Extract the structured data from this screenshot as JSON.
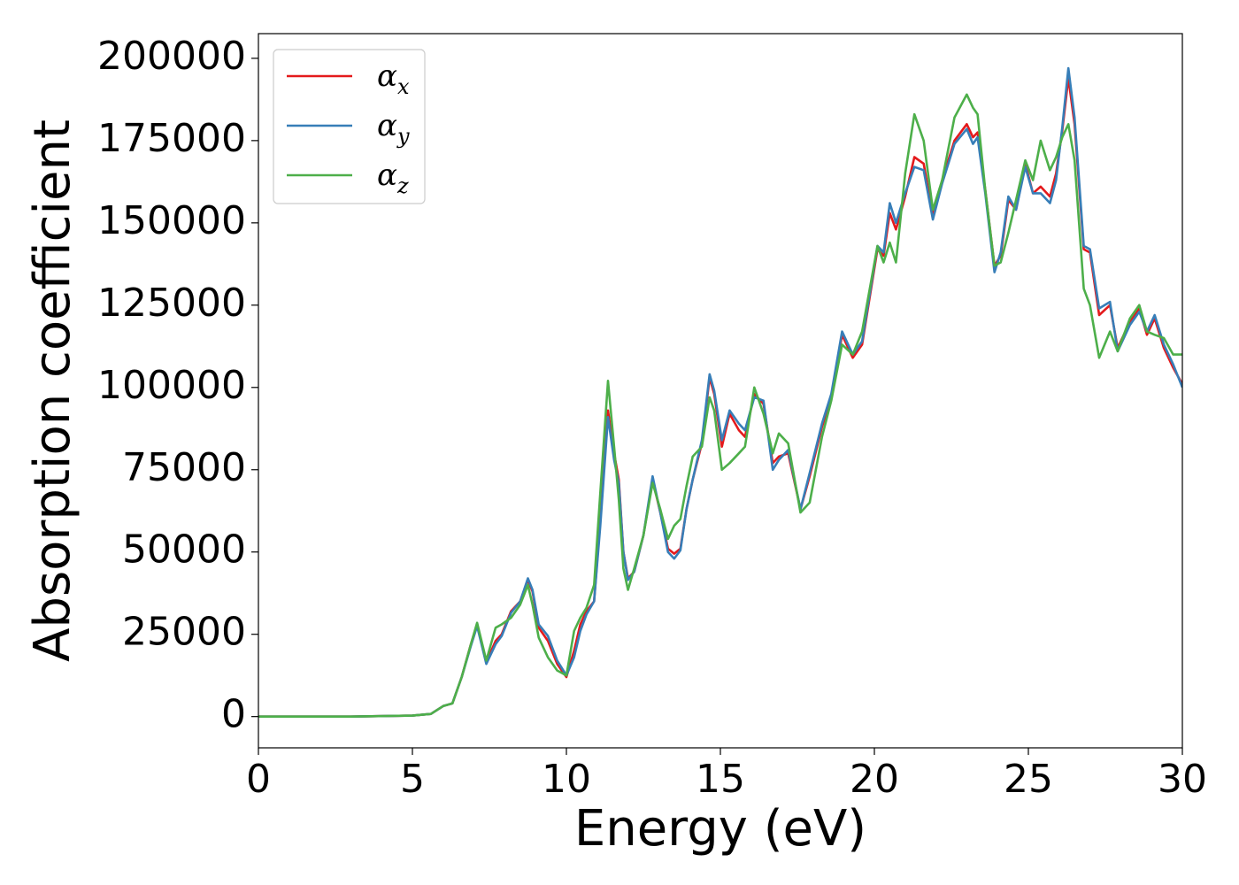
{
  "chart_data": {
    "type": "line",
    "title": "",
    "xlabel": "Energy (eV)",
    "ylabel": "Absorption coefficient",
    "xlim": [
      0,
      30
    ],
    "ylim": [
      -9500,
      207500
    ],
    "xticks": [
      0,
      5,
      10,
      15,
      20,
      25,
      30
    ],
    "yticks": [
      0,
      25000,
      50000,
      75000,
      100000,
      125000,
      150000,
      175000,
      200000
    ],
    "grid": false,
    "legend_position": "top-left",
    "series": [
      {
        "name": "α",
        "subscript": "x",
        "color": "#e41a1c",
        "points": [
          [
            0,
            0
          ],
          [
            3,
            0
          ],
          [
            5,
            300
          ],
          [
            5.6,
            800
          ],
          [
            6,
            3200
          ],
          [
            6.3,
            4000
          ],
          [
            6.6,
            12000
          ],
          [
            6.9,
            22000
          ],
          [
            7.1,
            28000
          ],
          [
            7.4,
            16500
          ],
          [
            7.7,
            23000
          ],
          [
            7.9,
            25000
          ],
          [
            8.2,
            32000
          ],
          [
            8.5,
            35000
          ],
          [
            8.75,
            41500
          ],
          [
            8.9,
            38000
          ],
          [
            9.1,
            27000
          ],
          [
            9.4,
            23000
          ],
          [
            9.7,
            16000
          ],
          [
            10,
            12000
          ],
          [
            10.25,
            20000
          ],
          [
            10.45,
            28000
          ],
          [
            10.65,
            32000
          ],
          [
            10.9,
            35000
          ],
          [
            11.1,
            60000
          ],
          [
            11.35,
            93000
          ],
          [
            11.55,
            80000
          ],
          [
            11.7,
            72000
          ],
          [
            11.85,
            50000
          ],
          [
            12,
            42000
          ],
          [
            12.2,
            44000
          ],
          [
            12.5,
            55000
          ],
          [
            12.8,
            72000
          ],
          [
            13.05,
            62000
          ],
          [
            13.3,
            51000
          ],
          [
            13.5,
            49500
          ],
          [
            13.7,
            51000
          ],
          [
            13.9,
            63000
          ],
          [
            14.1,
            72000
          ],
          [
            14.4,
            83000
          ],
          [
            14.65,
            103000
          ],
          [
            14.8,
            98000
          ],
          [
            15.05,
            82000
          ],
          [
            15.3,
            92000
          ],
          [
            15.6,
            87000
          ],
          [
            15.8,
            85000
          ],
          [
            16.1,
            98000
          ],
          [
            16.4,
            95000
          ],
          [
            16.7,
            77000
          ],
          [
            16.9,
            79000
          ],
          [
            17.2,
            80000
          ],
          [
            17.6,
            63000
          ],
          [
            17.9,
            73000
          ],
          [
            18.3,
            88000
          ],
          [
            18.6,
            97000
          ],
          [
            18.95,
            116000
          ],
          [
            19.3,
            109000
          ],
          [
            19.6,
            113000
          ],
          [
            20.1,
            142000
          ],
          [
            20.3,
            140000
          ],
          [
            20.5,
            153000
          ],
          [
            20.7,
            148000
          ],
          [
            21,
            158000
          ],
          [
            21.3,
            170000
          ],
          [
            21.6,
            168000
          ],
          [
            21.9,
            152000
          ],
          [
            22.2,
            163000
          ],
          [
            22.6,
            175000
          ],
          [
            23,
            180000
          ],
          [
            23.2,
            176000
          ],
          [
            23.35,
            177500
          ],
          [
            23.6,
            160000
          ],
          [
            23.9,
            137000
          ],
          [
            24.1,
            140000
          ],
          [
            24.35,
            157000
          ],
          [
            24.6,
            154000
          ],
          [
            24.9,
            168000
          ],
          [
            25.15,
            159000
          ],
          [
            25.4,
            161000
          ],
          [
            25.7,
            158000
          ],
          [
            25.9,
            165000
          ],
          [
            26.1,
            178000
          ],
          [
            26.3,
            194000
          ],
          [
            26.5,
            180000
          ],
          [
            26.8,
            142000
          ],
          [
            27,
            141000
          ],
          [
            27.3,
            122000
          ],
          [
            27.65,
            125000
          ],
          [
            27.9,
            112000
          ],
          [
            28.3,
            120000
          ],
          [
            28.6,
            124000
          ],
          [
            28.85,
            116000
          ],
          [
            29.1,
            121000
          ],
          [
            29.4,
            112000
          ],
          [
            29.7,
            106000
          ],
          [
            30,
            101000
          ]
        ]
      },
      {
        "name": "α",
        "subscript": "y",
        "color": "#377eb8",
        "points": [
          [
            0,
            0
          ],
          [
            3,
            0
          ],
          [
            5,
            300
          ],
          [
            5.6,
            800
          ],
          [
            6,
            3200
          ],
          [
            6.3,
            4000
          ],
          [
            6.6,
            12000
          ],
          [
            6.9,
            21500
          ],
          [
            7.1,
            27500
          ],
          [
            7.4,
            16000
          ],
          [
            7.7,
            22000
          ],
          [
            7.9,
            24500
          ],
          [
            8.2,
            31500
          ],
          [
            8.5,
            35000
          ],
          [
            8.75,
            42000
          ],
          [
            8.9,
            38500
          ],
          [
            9.1,
            28000
          ],
          [
            9.4,
            24500
          ],
          [
            9.7,
            17000
          ],
          [
            10,
            12500
          ],
          [
            10.25,
            18000
          ],
          [
            10.45,
            26000
          ],
          [
            10.65,
            31000
          ],
          [
            10.9,
            35000
          ],
          [
            11.1,
            58000
          ],
          [
            11.35,
            91000
          ],
          [
            11.55,
            78000
          ],
          [
            11.7,
            71000
          ],
          [
            11.85,
            50000
          ],
          [
            12,
            41500
          ],
          [
            12.2,
            44000
          ],
          [
            12.5,
            55000
          ],
          [
            12.8,
            73000
          ],
          [
            13.05,
            62000
          ],
          [
            13.3,
            50000
          ],
          [
            13.5,
            48000
          ],
          [
            13.7,
            50500
          ],
          [
            13.9,
            63000
          ],
          [
            14.1,
            72000
          ],
          [
            14.4,
            84000
          ],
          [
            14.65,
            104000
          ],
          [
            14.8,
            99000
          ],
          [
            15.05,
            84000
          ],
          [
            15.3,
            93000
          ],
          [
            15.6,
            89000
          ],
          [
            15.8,
            87000
          ],
          [
            16.1,
            97000
          ],
          [
            16.4,
            96000
          ],
          [
            16.7,
            75000
          ],
          [
            16.9,
            78000
          ],
          [
            17.2,
            81000
          ],
          [
            17.6,
            63000
          ],
          [
            17.9,
            74000
          ],
          [
            18.3,
            89000
          ],
          [
            18.6,
            98000
          ],
          [
            18.95,
            117000
          ],
          [
            19.3,
            110000
          ],
          [
            19.6,
            114000
          ],
          [
            20.1,
            143000
          ],
          [
            20.3,
            141000
          ],
          [
            20.5,
            156000
          ],
          [
            20.7,
            150000
          ],
          [
            21,
            159000
          ],
          [
            21.3,
            167000
          ],
          [
            21.6,
            166000
          ],
          [
            21.9,
            151000
          ],
          [
            22.2,
            162000
          ],
          [
            22.6,
            174000
          ],
          [
            23,
            178500
          ],
          [
            23.2,
            174000
          ],
          [
            23.35,
            176000
          ],
          [
            23.6,
            159000
          ],
          [
            23.9,
            135000
          ],
          [
            24.1,
            141000
          ],
          [
            24.35,
            158000
          ],
          [
            24.6,
            154000
          ],
          [
            24.9,
            167000
          ],
          [
            25.15,
            159000
          ],
          [
            25.4,
            159000
          ],
          [
            25.7,
            156000
          ],
          [
            25.9,
            163000
          ],
          [
            26.1,
            179000
          ],
          [
            26.3,
            197000
          ],
          [
            26.5,
            182000
          ],
          [
            26.8,
            143000
          ],
          [
            27,
            142000
          ],
          [
            27.3,
            124000
          ],
          [
            27.65,
            126000
          ],
          [
            27.9,
            111000
          ],
          [
            28.3,
            119000
          ],
          [
            28.6,
            123000
          ],
          [
            28.85,
            117000
          ],
          [
            29.1,
            122000
          ],
          [
            29.4,
            113000
          ],
          [
            29.7,
            107000
          ],
          [
            30,
            100000
          ]
        ]
      },
      {
        "name": "α",
        "subscript": "z",
        "color": "#4daf4a",
        "points": [
          [
            0,
            0
          ],
          [
            3,
            0
          ],
          [
            5,
            300
          ],
          [
            5.6,
            800
          ],
          [
            6,
            3200
          ],
          [
            6.3,
            4000
          ],
          [
            6.6,
            12000
          ],
          [
            6.9,
            22000
          ],
          [
            7.1,
            28500
          ],
          [
            7.4,
            17000
          ],
          [
            7.7,
            27000
          ],
          [
            7.9,
            28000
          ],
          [
            8.2,
            30000
          ],
          [
            8.5,
            34000
          ],
          [
            8.75,
            40000
          ],
          [
            8.9,
            34000
          ],
          [
            9.1,
            24000
          ],
          [
            9.4,
            18000
          ],
          [
            9.7,
            14000
          ],
          [
            10,
            12500
          ],
          [
            10.25,
            26000
          ],
          [
            10.45,
            30000
          ],
          [
            10.65,
            33000
          ],
          [
            10.9,
            40000
          ],
          [
            11.1,
            68000
          ],
          [
            11.35,
            102000
          ],
          [
            11.55,
            82000
          ],
          [
            11.7,
            66000
          ],
          [
            11.85,
            45000
          ],
          [
            12,
            38500
          ],
          [
            12.2,
            45000
          ],
          [
            12.5,
            55000
          ],
          [
            12.8,
            71000
          ],
          [
            13.05,
            63000
          ],
          [
            13.3,
            54000
          ],
          [
            13.5,
            58000
          ],
          [
            13.7,
            60000
          ],
          [
            13.9,
            70000
          ],
          [
            14.1,
            79000
          ],
          [
            14.4,
            82000
          ],
          [
            14.65,
            97000
          ],
          [
            14.8,
            93000
          ],
          [
            15.05,
            75000
          ],
          [
            15.3,
            77000
          ],
          [
            15.6,
            80000
          ],
          [
            15.8,
            82000
          ],
          [
            16.1,
            100000
          ],
          [
            16.4,
            92000
          ],
          [
            16.7,
            80000
          ],
          [
            16.9,
            86000
          ],
          [
            17.2,
            83000
          ],
          [
            17.6,
            62000
          ],
          [
            17.9,
            65000
          ],
          [
            18.3,
            85000
          ],
          [
            18.6,
            96000
          ],
          [
            18.95,
            113000
          ],
          [
            19.3,
            110000
          ],
          [
            19.6,
            117000
          ],
          [
            20.1,
            143000
          ],
          [
            20.3,
            138000
          ],
          [
            20.5,
            144000
          ],
          [
            20.7,
            138000
          ],
          [
            21,
            165000
          ],
          [
            21.3,
            183000
          ],
          [
            21.6,
            175000
          ],
          [
            21.9,
            154000
          ],
          [
            22.2,
            163000
          ],
          [
            22.6,
            182000
          ],
          [
            23,
            189000
          ],
          [
            23.2,
            185000
          ],
          [
            23.35,
            183000
          ],
          [
            23.6,
            160000
          ],
          [
            23.9,
            137000
          ],
          [
            24.1,
            138000
          ],
          [
            24.35,
            147000
          ],
          [
            24.6,
            157000
          ],
          [
            24.9,
            169000
          ],
          [
            25.15,
            163000
          ],
          [
            25.4,
            175000
          ],
          [
            25.7,
            166000
          ],
          [
            25.9,
            170000
          ],
          [
            26.1,
            176000
          ],
          [
            26.3,
            180000
          ],
          [
            26.5,
            169000
          ],
          [
            26.8,
            130000
          ],
          [
            27,
            125000
          ],
          [
            27.3,
            109000
          ],
          [
            27.65,
            117000
          ],
          [
            27.9,
            111000
          ],
          [
            28.3,
            121000
          ],
          [
            28.6,
            125000
          ],
          [
            28.85,
            117000
          ],
          [
            29.1,
            116000
          ],
          [
            29.4,
            115000
          ],
          [
            29.7,
            110000
          ],
          [
            30,
            110000
          ]
        ]
      }
    ]
  }
}
